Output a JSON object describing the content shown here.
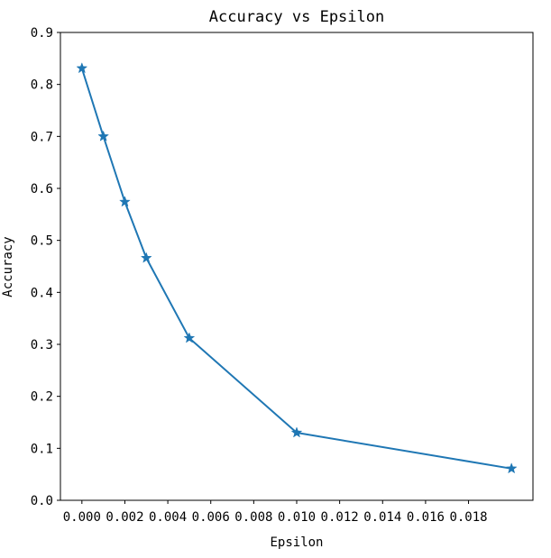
{
  "chart_data": {
    "type": "line",
    "title": "Accuracy vs Epsilon",
    "xlabel": "Epsilon",
    "ylabel": "Accuracy",
    "xlim": [
      -0.001,
      0.021
    ],
    "ylim": [
      0.0,
      0.9
    ],
    "x_ticks": [
      "0.000",
      "0.002",
      "0.004",
      "0.006",
      "0.008",
      "0.010",
      "0.012",
      "0.014",
      "0.016",
      "0.018"
    ],
    "y_ticks": [
      "0.0",
      "0.1",
      "0.2",
      "0.3",
      "0.4",
      "0.5",
      "0.6",
      "0.7",
      "0.8",
      "0.9"
    ],
    "grid": false,
    "marker": "star",
    "color": "#1f77b4",
    "series": [
      {
        "x": [
          0.0,
          0.001,
          0.002,
          0.003,
          0.005,
          0.01,
          0.02
        ],
        "y": [
          0.831,
          0.7,
          0.574,
          0.466,
          0.312,
          0.13,
          0.061
        ]
      }
    ]
  }
}
